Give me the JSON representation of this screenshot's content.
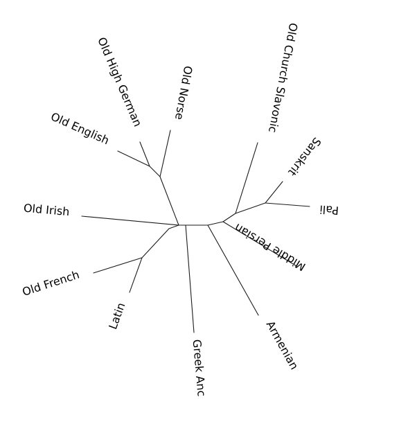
{
  "diagram": {
    "type": "unrooted-phylogenetic-tree",
    "languages": {
      "old_high_german": "Old High German",
      "old_norse": "Old Norse",
      "old_church_slavonic": "Old Church Slavonic",
      "old_english": "Old English",
      "sanskrit": "Sanskrit",
      "pali": "Pali",
      "old_irish": "Old Irish",
      "middle_persian": "Middle Persian",
      "old_french": "Old French",
      "latin": "Latin",
      "greek_anc": "Greek Anc",
      "armenian": "Armenian"
    }
  }
}
